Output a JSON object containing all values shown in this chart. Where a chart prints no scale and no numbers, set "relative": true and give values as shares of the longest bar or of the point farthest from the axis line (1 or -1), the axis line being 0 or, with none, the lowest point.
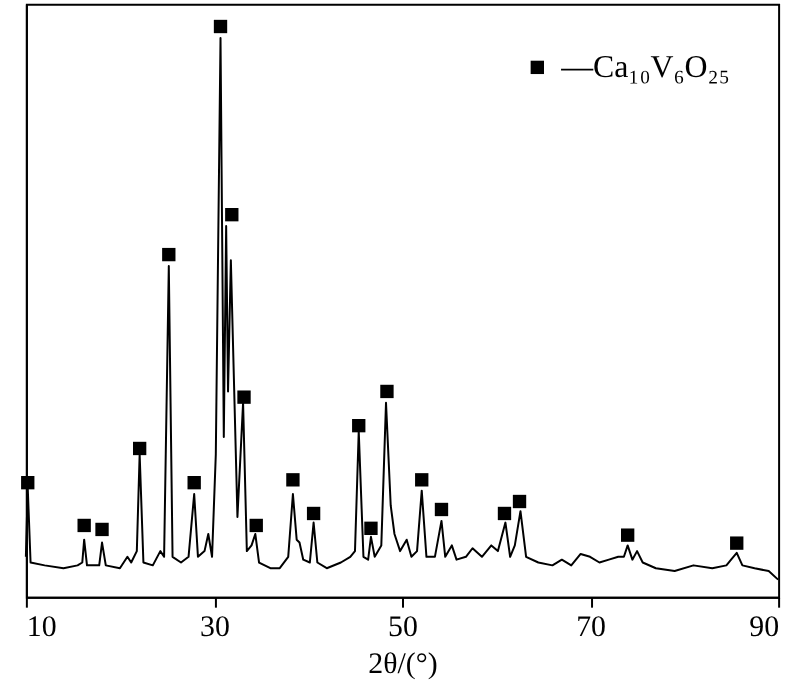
{
  "chart_data": {
    "type": "line",
    "relative": true,
    "xlabel": "2θ/(°)",
    "xlim": [
      10,
      90
    ],
    "xticks": [
      10,
      30,
      50,
      70,
      90
    ],
    "grid": false,
    "legend": "top right",
    "tick_labels": "x",
    "line_style": "solid",
    "marker": "none",
    "series": [
      {
        "color": "#000000",
        "x": [
          10.0,
          10.2,
          10.5,
          12,
          14,
          15.5,
          16.0,
          16.2,
          16.5,
          17.8,
          18.1,
          18.5,
          20,
          20.8,
          21.2,
          21.8,
          22.1,
          22.5,
          23.5,
          24.3,
          24.7,
          25.2,
          25.6,
          26.5,
          27.3,
          27.9,
          28.3,
          29.0,
          29.4,
          29.8,
          30.2,
          30.7,
          31.05,
          31.3,
          31.5,
          31.8,
          32.5,
          33.1,
          33.5,
          34.0,
          34.4,
          34.8,
          36,
          37,
          37.9,
          38.4,
          38.8,
          39.1,
          39.5,
          40.2,
          40.6,
          41.0,
          42,
          43.5,
          44.5,
          45.0,
          45.4,
          45.9,
          46.4,
          46.7,
          47.1,
          47.8,
          48.3,
          48.8,
          49.2,
          49.8,
          50.5,
          51.0,
          51.6,
          52.1,
          52.6,
          53.5,
          54.2,
          54.6,
          55.3,
          55.8,
          56.8,
          57.5,
          58.5,
          59.5,
          60.2,
          61.0,
          61.5,
          62.0,
          62.6,
          63.2,
          64.5,
          66,
          67,
          68,
          69,
          70,
          71,
          72,
          73,
          73.6,
          74.0,
          74.5,
          75.0,
          75.6,
          77,
          79,
          81,
          83,
          84.5,
          85.0,
          85.6,
          86.2,
          87.5,
          89,
          90
        ],
        "values": [
          0.07,
          0.19,
          0.06,
          0.055,
          0.05,
          0.055,
          0.06,
          0.1,
          0.055,
          0.055,
          0.095,
          0.055,
          0.05,
          0.07,
          0.06,
          0.08,
          0.25,
          0.06,
          0.055,
          0.08,
          0.07,
          0.58,
          0.07,
          0.06,
          0.07,
          0.18,
          0.07,
          0.08,
          0.11,
          0.07,
          0.25,
          0.98,
          0.28,
          0.65,
          0.36,
          0.59,
          0.14,
          0.34,
          0.08,
          0.09,
          0.11,
          0.06,
          0.05,
          0.05,
          0.07,
          0.18,
          0.1,
          0.095,
          0.065,
          0.06,
          0.13,
          0.06,
          0.05,
          0.06,
          0.07,
          0.08,
          0.29,
          0.07,
          0.065,
          0.105,
          0.07,
          0.09,
          0.34,
          0.16,
          0.11,
          0.08,
          0.1,
          0.07,
          0.08,
          0.186,
          0.07,
          0.07,
          0.133,
          0.07,
          0.09,
          0.065,
          0.07,
          0.085,
          0.07,
          0.09,
          0.08,
          0.13,
          0.07,
          0.09,
          0.15,
          0.07,
          0.06,
          0.055,
          0.065,
          0.055,
          0.075,
          0.07,
          0.06,
          0.065,
          0.07,
          0.07,
          0.09,
          0.065,
          0.08,
          0.06,
          0.05,
          0.045,
          0.055,
          0.05,
          0.055,
          0.065,
          0.077,
          0.055,
          0.05,
          0.045,
          0.03
        ]
      },
      {
        "type": "scatter",
        "name": "—Ca₁₀V₆O₂₅",
        "color": "#000000",
        "marker": "square",
        "x": [
          10.2,
          16.2,
          18.1,
          22.1,
          25.2,
          27.9,
          30.7,
          31.9,
          33.2,
          34.5,
          38.4,
          40.6,
          45.4,
          46.7,
          48.4,
          52.1,
          54.2,
          60.9,
          62.5,
          74.0,
          85.6
        ],
        "values": [
          0.2,
          0.125,
          0.118,
          0.26,
          0.6,
          0.2,
          1.0,
          0.67,
          0.35,
          0.125,
          0.205,
          0.146,
          0.3,
          0.12,
          0.36,
          0.205,
          0.153,
          0.146,
          0.167,
          0.108,
          0.094
        ]
      }
    ]
  }
}
